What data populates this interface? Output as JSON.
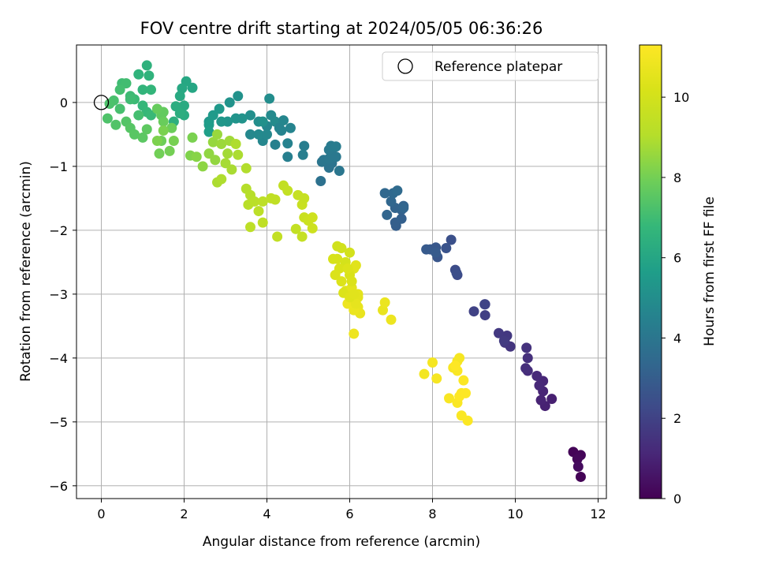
{
  "chart_data": {
    "type": "scatter",
    "title": "FOV centre drift starting at 2024/05/05 06:36:26",
    "xlabel": "Angular distance from reference (arcmin)",
    "ylabel": "Rotation from reference (arcmin)",
    "colorbar_label": "Hours from first FF file",
    "xlim": [
      -0.6,
      12.2
    ],
    "ylim": [
      -6.2,
      0.9
    ],
    "clim": [
      0,
      11.3
    ],
    "colormap": "viridis",
    "x_ticks": [
      0,
      2,
      4,
      6,
      8,
      10,
      12
    ],
    "y_ticks": [
      0,
      -1,
      -2,
      -3,
      -4,
      -5,
      -6
    ],
    "colorbar_ticks": [
      0,
      2,
      4,
      6,
      8,
      10
    ],
    "grid": true,
    "legend_position": "top-right",
    "reference": {
      "name": "Reference platepar",
      "x": 0,
      "y": 0
    },
    "series": [
      {
        "points": [
          [
            11.4,
            -5.47,
            0.1
          ],
          [
            11.58,
            -5.52,
            0.15
          ],
          [
            11.5,
            -5.58,
            0.2
          ],
          [
            11.52,
            -5.7,
            0.3
          ],
          [
            11.58,
            -5.86,
            0.05
          ],
          [
            10.88,
            -4.64,
            0.9
          ],
          [
            10.72,
            -4.75,
            0.95
          ],
          [
            10.62,
            -4.66,
            1.0
          ],
          [
            10.67,
            -4.52,
            1.05
          ],
          [
            10.67,
            -4.36,
            1.1
          ],
          [
            10.58,
            -4.43,
            1.15
          ],
          [
            10.52,
            -4.28,
            1.2
          ],
          [
            10.3,
            -4.2,
            1.3
          ],
          [
            10.25,
            -4.16,
            1.35
          ],
          [
            10.3,
            -4.0,
            1.4
          ],
          [
            10.27,
            -3.84,
            1.45
          ],
          [
            9.88,
            -3.82,
            1.55
          ],
          [
            9.75,
            -3.76,
            1.6
          ],
          [
            9.8,
            -3.65,
            1.65
          ],
          [
            9.6,
            -3.61,
            1.7
          ],
          [
            9.73,
            -3.73,
            1.75
          ],
          [
            9.27,
            -3.33,
            1.9
          ],
          [
            9.27,
            -3.16,
            1.95
          ],
          [
            9.0,
            -3.27,
            2.0
          ],
          [
            9.26,
            -3.16,
            2.05
          ],
          [
            8.6,
            -2.7,
            2.3
          ],
          [
            8.55,
            -2.62,
            2.35
          ],
          [
            8.58,
            -2.67,
            2.4
          ],
          [
            8.45,
            -2.15,
            2.5
          ],
          [
            8.33,
            -2.28,
            2.6
          ],
          [
            8.12,
            -2.42,
            2.7
          ],
          [
            8.08,
            -2.27,
            2.75
          ],
          [
            7.95,
            -2.3,
            2.8
          ],
          [
            7.85,
            -2.3,
            2.85
          ],
          [
            8.08,
            -2.35,
            2.9
          ],
          [
            7.12,
            -1.93,
            3.0
          ],
          [
            7.1,
            -1.88,
            3.05
          ],
          [
            7.25,
            -1.82,
            3.1
          ],
          [
            7.25,
            -1.68,
            3.15
          ],
          [
            7.3,
            -1.62,
            3.2
          ],
          [
            7.1,
            -1.65,
            3.25
          ],
          [
            6.9,
            -1.76,
            3.3
          ],
          [
            7.0,
            -1.55,
            3.35
          ],
          [
            6.85,
            -1.42,
            3.4
          ],
          [
            7.05,
            -1.42,
            3.45
          ],
          [
            7.15,
            -1.38,
            3.5
          ],
          [
            7.3,
            -1.65,
            3.3
          ],
          [
            5.3,
            -1.23,
            3.8
          ],
          [
            5.5,
            -1.02,
            3.85
          ],
          [
            5.57,
            -0.95,
            3.9
          ],
          [
            5.33,
            -0.93,
            3.95
          ],
          [
            5.37,
            -0.9,
            4.0
          ],
          [
            5.5,
            -0.88,
            4.05
          ],
          [
            5.6,
            -0.83,
            4.1
          ],
          [
            5.5,
            -0.74,
            4.15
          ],
          [
            5.55,
            -0.68,
            4.2
          ],
          [
            5.67,
            -0.69,
            4.25
          ],
          [
            5.67,
            -0.85,
            4.1
          ],
          [
            5.75,
            -1.07,
            4.0
          ],
          [
            4.9,
            -0.68,
            4.3
          ],
          [
            4.87,
            -0.82,
            4.35
          ],
          [
            4.5,
            -0.85,
            4.4
          ],
          [
            4.2,
            -0.66,
            4.45
          ],
          [
            4.5,
            -0.64,
            4.5
          ],
          [
            4.35,
            -0.44,
            4.55
          ],
          [
            4.57,
            -0.4,
            4.6
          ],
          [
            4.0,
            -0.37,
            4.65
          ],
          [
            3.9,
            -0.6,
            4.7
          ],
          [
            3.6,
            -0.5,
            4.75
          ],
          [
            3.8,
            -0.5,
            4.8
          ],
          [
            4.1,
            -0.2,
            4.85
          ],
          [
            4.2,
            -0.3,
            4.9
          ],
          [
            4.06,
            0.06,
            4.95
          ],
          [
            3.8,
            -0.3,
            5.0
          ],
          [
            3.6,
            -0.2,
            5.05
          ],
          [
            3.9,
            -0.3,
            5.1
          ],
          [
            3.3,
            0.1,
            5.15
          ],
          [
            3.1,
            0.0,
            5.2
          ],
          [
            3.25,
            -0.25,
            5.25
          ],
          [
            3.05,
            -0.3,
            5.3
          ],
          [
            2.9,
            -0.3,
            5.35
          ],
          [
            2.6,
            -0.3,
            5.4
          ],
          [
            2.85,
            -0.1,
            5.45
          ],
          [
            2.7,
            -0.2,
            5.5
          ],
          [
            4.3,
            -0.4,
            4.6
          ],
          [
            4.4,
            -0.28,
            4.7
          ],
          [
            4.0,
            -0.5,
            4.75
          ],
          [
            2.6,
            -0.35,
            5.6
          ],
          [
            2.6,
            -0.46,
            5.7
          ],
          [
            3.4,
            -0.25,
            5.2
          ],
          [
            2.2,
            0.23,
            6.0
          ],
          [
            2.05,
            0.33,
            6.05
          ],
          [
            1.95,
            0.22,
            6.1
          ],
          [
            1.9,
            0.1,
            6.15
          ],
          [
            2.0,
            -0.05,
            6.2
          ],
          [
            2.0,
            -0.2,
            6.25
          ],
          [
            1.8,
            -0.06,
            6.3
          ],
          [
            1.9,
            -0.17,
            6.35
          ],
          [
            1.75,
            -0.3,
            6.4
          ],
          [
            1.1,
            0.58,
            6.5
          ],
          [
            1.15,
            0.42,
            6.55
          ],
          [
            0.9,
            0.44,
            6.6
          ],
          [
            1.0,
            0.2,
            6.65
          ],
          [
            1.2,
            0.2,
            6.7
          ],
          [
            1.0,
            -0.05,
            6.75
          ],
          [
            1.1,
            -0.15,
            6.8
          ],
          [
            1.2,
            -0.2,
            6.85
          ],
          [
            0.8,
            0.05,
            6.9
          ],
          [
            0.7,
            0.1,
            6.95
          ],
          [
            0.5,
            0.3,
            7.0
          ],
          [
            0.6,
            0.3,
            7.05
          ],
          [
            0.45,
            0.2,
            7.1
          ],
          [
            0.45,
            -0.1,
            7.15
          ],
          [
            0.3,
            0.03,
            7.2
          ],
          [
            0.2,
            -0.02,
            7.25
          ],
          [
            0.15,
            -0.25,
            7.3
          ],
          [
            0.35,
            -0.35,
            7.35
          ],
          [
            0.6,
            -0.3,
            7.4
          ],
          [
            0.7,
            -0.4,
            7.45
          ],
          [
            0.8,
            -0.5,
            7.5
          ],
          [
            1.0,
            -0.55,
            7.55
          ],
          [
            1.1,
            -0.42,
            7.6
          ],
          [
            1.45,
            -0.2,
            7.65
          ],
          [
            1.5,
            -0.15,
            7.7
          ],
          [
            1.35,
            -0.1,
            7.75
          ],
          [
            1.5,
            -0.3,
            7.8
          ],
          [
            1.7,
            -0.4,
            7.85
          ],
          [
            1.45,
            -0.6,
            7.9
          ],
          [
            1.4,
            -0.8,
            7.95
          ],
          [
            1.65,
            -0.76,
            8.0
          ],
          [
            1.75,
            -0.6,
            8.05
          ],
          [
            1.5,
            -0.44,
            8.1
          ],
          [
            1.35,
            -0.6,
            8.15
          ],
          [
            0.7,
            0.05,
            7.0
          ],
          [
            0.9,
            -0.2,
            7.1
          ],
          [
            2.2,
            -0.55,
            8.1
          ],
          [
            2.15,
            -0.83,
            8.2
          ],
          [
            2.3,
            -0.85,
            8.3
          ],
          [
            2.45,
            -1.0,
            8.4
          ],
          [
            2.6,
            -0.8,
            8.45
          ],
          [
            2.75,
            -0.9,
            8.5
          ],
          [
            2.7,
            -0.62,
            8.55
          ],
          [
            2.8,
            -0.5,
            8.6
          ],
          [
            2.9,
            -0.65,
            8.65
          ],
          [
            3.1,
            -0.6,
            8.7
          ],
          [
            3.05,
            -0.8,
            8.75
          ],
          [
            3.0,
            -0.95,
            8.8
          ],
          [
            3.15,
            -1.05,
            8.85
          ],
          [
            3.3,
            -0.82,
            8.9
          ],
          [
            3.25,
            -0.65,
            8.95
          ],
          [
            2.8,
            -1.25,
            8.9
          ],
          [
            2.9,
            -1.2,
            8.95
          ],
          [
            3.5,
            -1.03,
            9.0
          ],
          [
            3.5,
            -1.35,
            9.05
          ],
          [
            3.6,
            -1.45,
            9.1
          ],
          [
            3.55,
            -1.6,
            9.15
          ],
          [
            3.7,
            -1.55,
            9.2
          ],
          [
            3.8,
            -1.7,
            9.25
          ],
          [
            3.9,
            -1.55,
            9.3
          ],
          [
            4.1,
            -1.5,
            9.35
          ],
          [
            4.2,
            -1.52,
            9.4
          ],
          [
            4.4,
            -1.3,
            9.45
          ],
          [
            4.5,
            -1.38,
            9.5
          ],
          [
            3.6,
            -1.95,
            9.3
          ],
          [
            3.9,
            -1.88,
            9.35
          ],
          [
            4.25,
            -2.1,
            9.45
          ],
          [
            4.7,
            -1.98,
            9.5
          ],
          [
            4.85,
            -2.1,
            9.55
          ],
          [
            4.75,
            -1.45,
            9.6
          ],
          [
            4.85,
            -1.6,
            9.65
          ],
          [
            4.9,
            -1.8,
            9.7
          ],
          [
            5.0,
            -1.85,
            9.75
          ],
          [
            5.1,
            -1.97,
            9.8
          ],
          [
            5.1,
            -1.8,
            9.85
          ],
          [
            4.9,
            -1.5,
            9.6
          ],
          [
            5.7,
            -2.25,
            9.9
          ],
          [
            5.8,
            -2.28,
            9.95
          ],
          [
            6.0,
            -2.35,
            10.0
          ],
          [
            5.9,
            -2.5,
            10.05
          ],
          [
            5.7,
            -2.45,
            10.1
          ],
          [
            5.6,
            -2.45,
            10.15
          ],
          [
            5.75,
            -2.6,
            10.2
          ],
          [
            5.65,
            -2.7,
            10.25
          ],
          [
            5.8,
            -2.8,
            10.3
          ],
          [
            5.9,
            -2.95,
            10.35
          ],
          [
            6.1,
            -2.6,
            10.4
          ],
          [
            6.15,
            -2.55,
            10.45
          ],
          [
            6.05,
            -2.9,
            10.5
          ],
          [
            6.2,
            -3.0,
            10.55
          ],
          [
            6.1,
            -3.1,
            10.6
          ],
          [
            6.2,
            -3.2,
            10.65
          ],
          [
            6.25,
            -3.3,
            10.7
          ],
          [
            6.1,
            -3.25,
            10.75
          ],
          [
            5.95,
            -3.15,
            10.8
          ],
          [
            6.1,
            -3.62,
            10.85
          ],
          [
            6.0,
            -2.7,
            10.2
          ],
          [
            6.05,
            -2.8,
            10.25
          ],
          [
            5.95,
            -2.6,
            10.3
          ],
          [
            6.2,
            -3.05,
            10.5
          ],
          [
            6.15,
            -3.15,
            10.6
          ],
          [
            5.85,
            -2.98,
            10.3
          ],
          [
            6.0,
            -3.05,
            10.4
          ],
          [
            6.1,
            -3.0,
            10.45
          ],
          [
            6.8,
            -3.25,
            10.7
          ],
          [
            6.85,
            -3.13,
            10.75
          ],
          [
            7.0,
            -3.4,
            10.8
          ],
          [
            7.8,
            -4.25,
            11.0
          ],
          [
            8.0,
            -4.07,
            11.05
          ],
          [
            8.1,
            -4.32,
            11.1
          ],
          [
            8.4,
            -4.63,
            11.15
          ],
          [
            8.6,
            -4.7,
            11.2
          ],
          [
            8.7,
            -4.55,
            11.25
          ],
          [
            8.65,
            -4.6,
            11.3
          ],
          [
            8.8,
            -4.55,
            11.3
          ],
          [
            8.75,
            -4.35,
            11.25
          ],
          [
            8.6,
            -4.2,
            11.2
          ],
          [
            8.5,
            -4.15,
            11.15
          ],
          [
            8.6,
            -4.05,
            11.1
          ],
          [
            8.65,
            -4.0,
            11.05
          ],
          [
            8.7,
            -4.9,
            11.2
          ],
          [
            8.85,
            -4.98,
            11.25
          ],
          [
            8.55,
            -4.12,
            11.3
          ]
        ]
      }
    ]
  }
}
